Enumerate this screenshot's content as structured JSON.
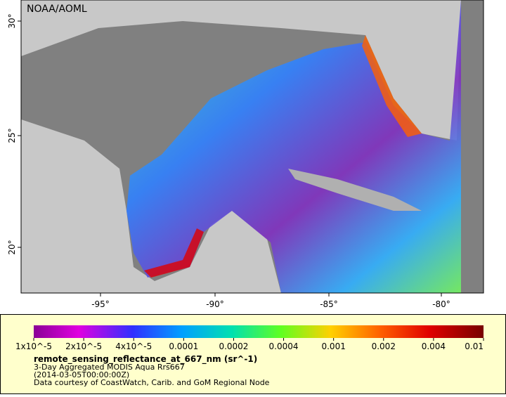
{
  "map": {
    "watermark": "NOAA/AOML",
    "lat_labels": [
      "30°",
      "25°",
      "20°"
    ],
    "lon_labels": [
      "-95°",
      "-90°",
      "-85°",
      "-80°"
    ]
  },
  "colorbar": {
    "labels": [
      "1x10^-5",
      "2x10^-5",
      "4x10^-5",
      "0.0001",
      "0.0002",
      "0.0004",
      "0.001",
      "0.002",
      "0.004",
      "0.01"
    ]
  },
  "legend": {
    "variable": "remote_sensing_reflectance_at_667_nm (sr^-1)",
    "dataset": "3-Day Aggregated MODIS Aqua Rrs667",
    "time": "(2014-03-05T00:00:00Z)",
    "credit": "Data courtesy of CoastWatch, Carib. and GoM Regional Node"
  }
}
